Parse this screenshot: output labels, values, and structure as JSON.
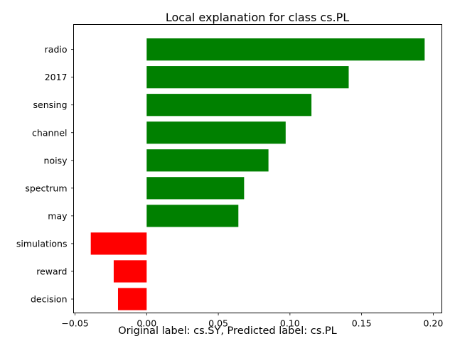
{
  "chart_data": {
    "type": "bar",
    "orientation": "horizontal",
    "title": "Local explanation for class cs.PL",
    "xlabel": "",
    "ylabel": "",
    "categories": [
      "radio",
      "2017",
      "sensing",
      "channel",
      "noisy",
      "spectrum",
      "may",
      "simulations",
      "reward",
      "decision"
    ],
    "values": [
      0.194,
      0.141,
      0.115,
      0.097,
      0.085,
      0.068,
      0.064,
      -0.039,
      -0.023,
      -0.02
    ],
    "xlim": [
      -0.051,
      0.206
    ],
    "xticks": [
      -0.05,
      0.0,
      0.05,
      0.1,
      0.15,
      0.2
    ],
    "xtick_labels": [
      "−0.05",
      "0.00",
      "0.05",
      "0.10",
      "0.15",
      "0.20"
    ],
    "grid": false,
    "colors": {
      "positive": "#008000",
      "negative": "#ff0000"
    }
  },
  "caption": "Original label: cs.SY, Predicted label: cs.PL"
}
